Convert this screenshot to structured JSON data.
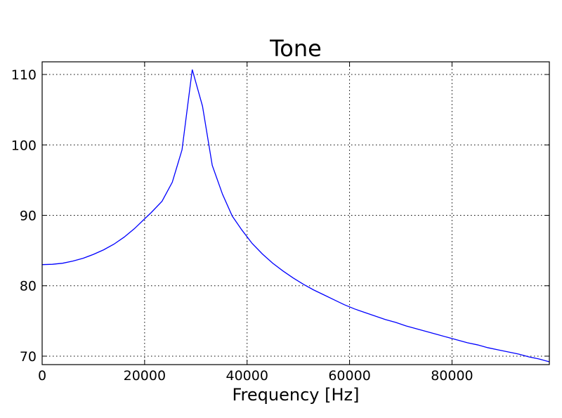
{
  "chart_data": {
    "type": "line",
    "title": "Tone",
    "xlabel": "Frequency [Hz]",
    "ylabel": "",
    "xlim": [
      0,
      99000
    ],
    "ylim": [
      68.8,
      111.8
    ],
    "xticks": [
      0,
      20000,
      40000,
      60000,
      80000
    ],
    "yticks": [
      70,
      80,
      90,
      100,
      110
    ],
    "grid": true,
    "colors": {
      "series": "#0000ff"
    },
    "series": [
      {
        "x": [
          0,
          2000,
          4000,
          6000,
          8000,
          10000,
          12000,
          14000,
          16000,
          18000,
          20000,
          21300,
          23400,
          25400,
          27300,
          29300,
          31300,
          33200,
          35200,
          37100,
          39000,
          41000,
          43000,
          45000,
          47000,
          49000,
          51000,
          53000,
          55000,
          57000,
          59000,
          61000,
          63000,
          65000,
          67000,
          69000,
          71000,
          73000,
          75000,
          77000,
          79000,
          81000,
          83000,
          85000,
          87000,
          89000,
          91000,
          93000,
          95000,
          97000,
          99000
        ],
        "y": [
          83.0,
          83.05,
          83.2,
          83.5,
          83.9,
          84.45,
          85.1,
          85.9,
          86.9,
          88.1,
          89.5,
          90.4,
          92.0,
          94.7,
          99.3,
          110.7,
          105.5,
          97.1,
          93.0,
          89.9,
          87.9,
          86.0,
          84.5,
          83.2,
          82.1,
          81.1,
          80.2,
          79.4,
          78.7,
          78.0,
          77.3,
          76.7,
          76.2,
          75.7,
          75.2,
          74.8,
          74.3,
          73.9,
          73.5,
          73.1,
          72.7,
          72.3,
          71.9,
          71.6,
          71.2,
          70.9,
          70.6,
          70.3,
          69.9,
          69.6,
          69.2
        ]
      }
    ]
  }
}
